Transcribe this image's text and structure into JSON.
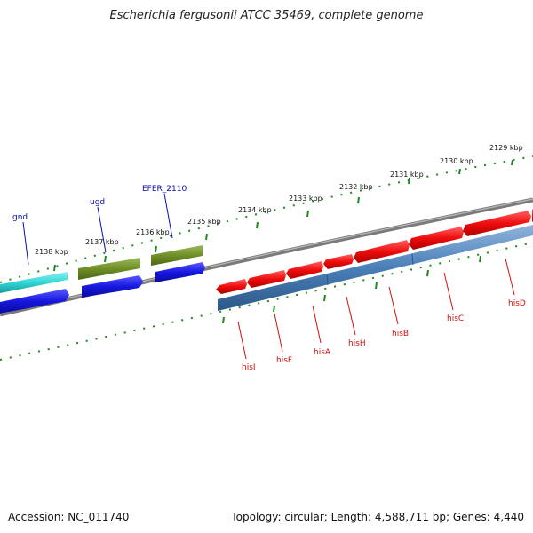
{
  "title": "Escherichia fergusonii ATCC 35469, complete genome",
  "footer": {
    "accession": "Accession: NC_011740",
    "topology": "Topology: circular; Length: 4,588,711 bp; Genes: 4,440"
  },
  "colors": {
    "backbone": "#7a7a7a",
    "tick": "#1e8a1e",
    "gene_red": "#ee0d0d",
    "gene_blue_fill": "#4a7fb8",
    "gene_blue_arrow": "#1717e0",
    "gene_cyan": "#33d6d6",
    "gene_olive": "#6f8f26",
    "label_top": "#0a0ab4",
    "label_bottom": "#d01010"
  },
  "scale_ticks": [
    "2129 kbp",
    "2130 kbp",
    "2131 kbp",
    "2132 kbp",
    "2133 kbp",
    "2134 kbp",
    "2135 kbp",
    "2136 kbp",
    "2137 kbp",
    "2138 kbp"
  ],
  "genes_top": [
    "gnd",
    "ugd",
    "EFER_2110"
  ],
  "genes_bottom": [
    "hisI",
    "hisF",
    "hisA",
    "hisH",
    "hisB",
    "hisC",
    "hisD"
  ]
}
